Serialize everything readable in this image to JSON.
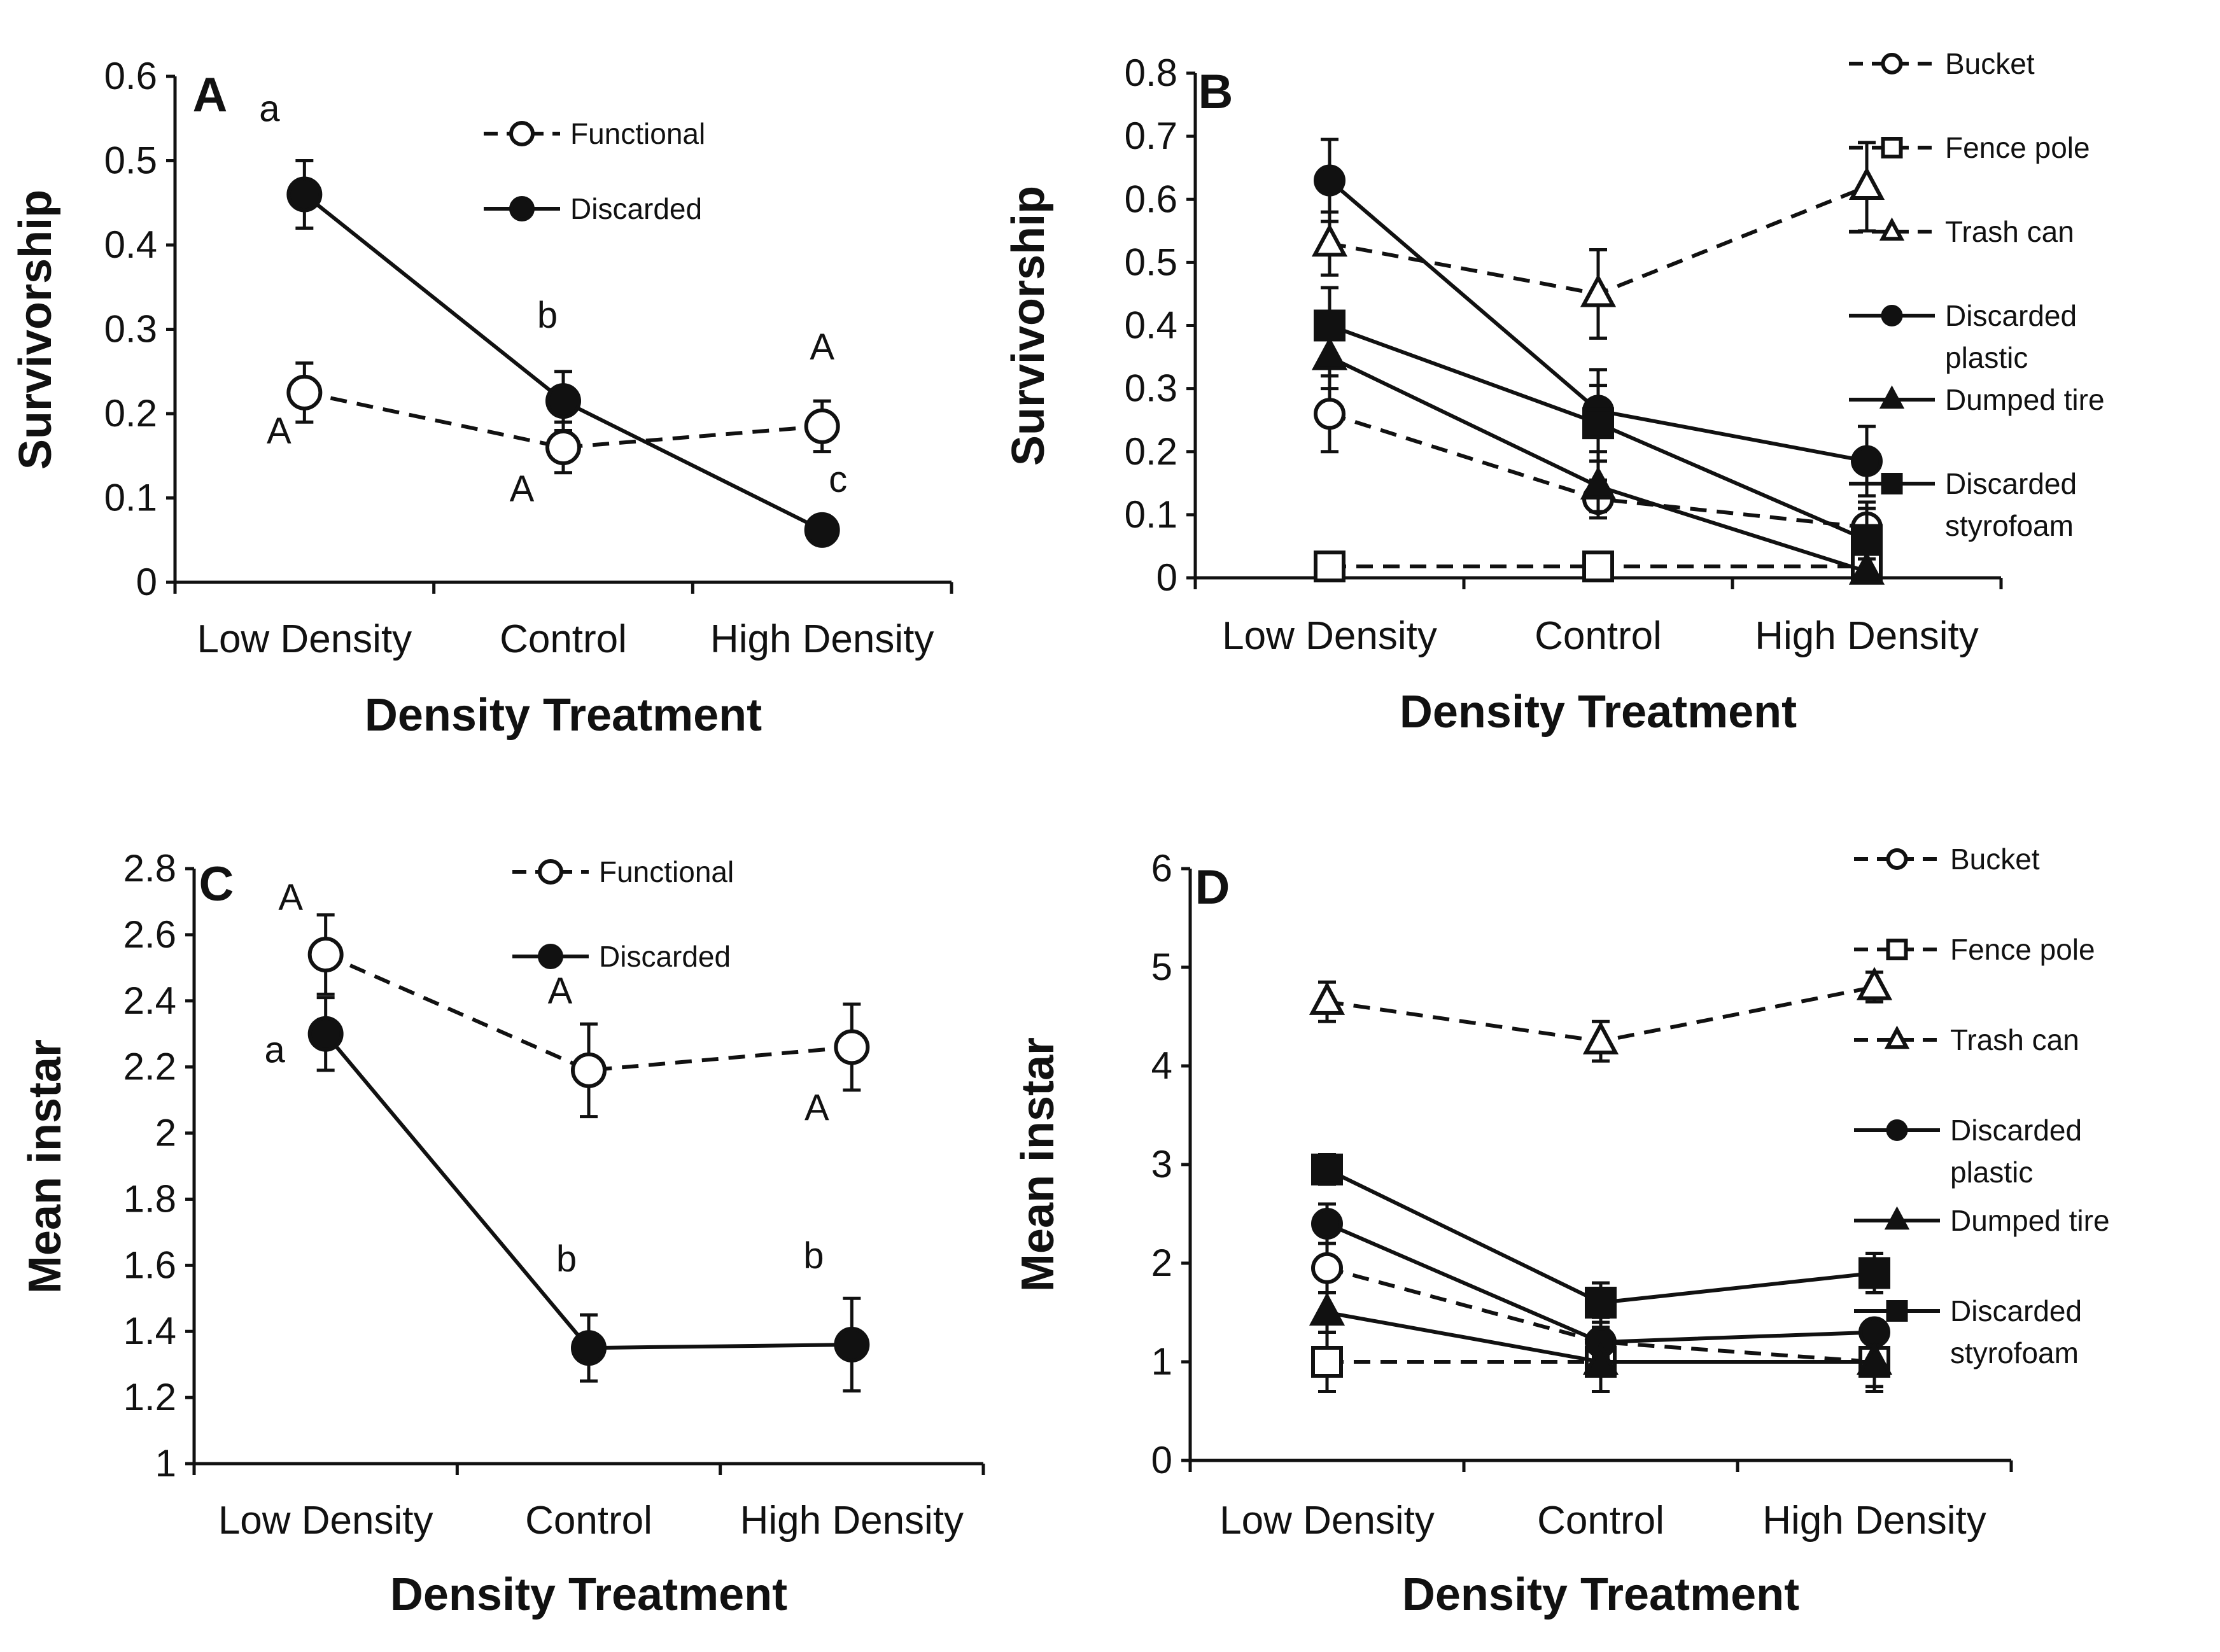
{
  "chart_data": [
    {
      "panel": "A",
      "type": "line",
      "xlabel": "Density Treatment",
      "ylabel": "Survivorship",
      "categories": [
        "Low Density",
        "Control",
        "High Density"
      ],
      "ylim": [
        0,
        0.6
      ],
      "yticks": [
        "0",
        "0.1",
        "0.2",
        "0.3",
        "0.4",
        "0.5",
        "0.6"
      ],
      "series": [
        {
          "name": "Functional",
          "style": "dashed",
          "marker": "circle-open",
          "values": [
            0.225,
            0.16,
            0.185
          ],
          "errors": [
            0.035,
            0.03,
            0.03
          ],
          "letters": [
            "A",
            "A",
            "A"
          ]
        },
        {
          "name": "Discarded",
          "style": "solid",
          "marker": "circle-filled",
          "values": [
            0.46,
            0.215,
            0.062
          ],
          "errors": [
            0.04,
            0.035,
            0.008
          ],
          "letters": [
            "a",
            "b",
            "c"
          ]
        }
      ]
    },
    {
      "panel": "B",
      "type": "line",
      "xlabel": "Density Treatment",
      "ylabel": "Survivorship",
      "categories": [
        "Low Density",
        "Control",
        "High Density"
      ],
      "ylim": [
        0,
        0.8
      ],
      "yticks": [
        "0",
        "0.1",
        "0.2",
        "0.3",
        "0.4",
        "0.5",
        "0.6",
        "0.7",
        "0.8"
      ],
      "series": [
        {
          "name": "Bucket",
          "style": "dashed",
          "marker": "circle-open",
          "values": [
            0.26,
            0.125,
            0.08
          ],
          "errors": [
            0.06,
            0.03,
            0.04
          ]
        },
        {
          "name": "Fence pole",
          "style": "dashed",
          "marker": "square-open",
          "values": [
            0.018,
            0.018,
            0.018
          ],
          "errors": [
            0.0,
            0.0,
            0.0
          ]
        },
        {
          "name": "Trash can",
          "style": "dashed",
          "marker": "triangle-open",
          "values": [
            0.53,
            0.45,
            0.62
          ],
          "errors": [
            0.05,
            0.07,
            0.07
          ]
        },
        {
          "name": "Discarded plastic",
          "style": "solid",
          "marker": "circle-filled",
          "values": [
            0.63,
            0.265,
            0.185
          ],
          "errors": [
            0.065,
            0.065,
            0.055
          ]
        },
        {
          "name": "Dumped tire",
          "style": "solid",
          "marker": "triangle-filled",
          "values": [
            0.35,
            0.145,
            0.01
          ],
          "errors": [
            0.05,
            0.04,
            0.02
          ]
        },
        {
          "name": "Discarded styrofoam",
          "style": "solid",
          "marker": "square-filled",
          "values": [
            0.4,
            0.245,
            0.06
          ],
          "errors": [
            0.06,
            0.06,
            0.05
          ]
        }
      ]
    },
    {
      "panel": "C",
      "type": "line",
      "xlabel": "Density Treatment",
      "ylabel": "Mean instar",
      "categories": [
        "Low Density",
        "Control",
        "High Density"
      ],
      "ylim": [
        1,
        2.8
      ],
      "yticks": [
        "1",
        "1.2",
        "1.4",
        "1.6",
        "1.8",
        "2",
        "2.2",
        "2.4",
        "2.6",
        "2.8"
      ],
      "series": [
        {
          "name": "Functional",
          "style": "dashed",
          "marker": "circle-open",
          "values": [
            2.54,
            2.19,
            2.26
          ],
          "errors": [
            0.12,
            0.14,
            0.13
          ],
          "letters": [
            "A",
            "A",
            "A"
          ]
        },
        {
          "name": "Discarded",
          "style": "solid",
          "marker": "circle-filled",
          "values": [
            2.3,
            1.35,
            1.36
          ],
          "errors": [
            0.11,
            0.1,
            0.14
          ],
          "letters": [
            "a",
            "b",
            "b"
          ]
        }
      ]
    },
    {
      "panel": "D",
      "type": "line",
      "xlabel": "Density Treatment",
      "ylabel": "Mean instar",
      "categories": [
        "Low Density",
        "Control",
        "High Density"
      ],
      "ylim": [
        0,
        6
      ],
      "yticks": [
        "0",
        "1",
        "2",
        "3",
        "4",
        "5",
        "6"
      ],
      "series": [
        {
          "name": "Bucket",
          "style": "dashed",
          "marker": "circle-open",
          "values": [
            1.95,
            1.2,
            1.0
          ],
          "errors": [
            0.25,
            0.25,
            0.25
          ]
        },
        {
          "name": "Fence pole",
          "style": "dashed",
          "marker": "square-open",
          "values": [
            1.0,
            1.0,
            1.0
          ],
          "errors": [
            0.3,
            0.0,
            0.0
          ]
        },
        {
          "name": "Trash can",
          "style": "dashed",
          "marker": "triangle-open",
          "values": [
            4.65,
            4.25,
            4.8
          ],
          "errors": [
            0.2,
            0.2,
            0.15
          ]
        },
        {
          "name": "Discarded plastic",
          "style": "solid",
          "marker": "circle-filled",
          "values": [
            2.4,
            1.2,
            1.3
          ],
          "errors": [
            0.2,
            0.15,
            0.1
          ]
        },
        {
          "name": "Dumped tire",
          "style": "solid",
          "marker": "triangle-filled",
          "values": [
            1.5,
            1.0,
            1.0
          ],
          "errors": [
            0.2,
            0.3,
            0.3
          ]
        },
        {
          "name": "Discarded styrofoam",
          "style": "solid",
          "marker": "square-filled",
          "values": [
            2.95,
            1.6,
            1.9
          ],
          "errors": [
            0.15,
            0.2,
            0.2
          ]
        }
      ]
    }
  ]
}
